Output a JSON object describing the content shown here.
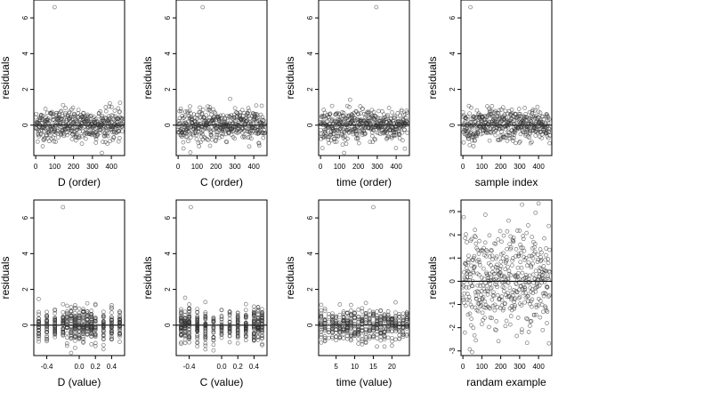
{
  "chart_data": [
    {
      "type": "scatter",
      "xlabel": "D (order)",
      "ylabel": "residuals",
      "x_ticks": [
        0,
        100,
        200,
        300,
        400
      ],
      "y_ticks": [
        0,
        2,
        4,
        6
      ],
      "xlim": [
        -10,
        470
      ],
      "ylim": [
        -1.7,
        7.0
      ],
      "hline": 0,
      "n_points": 460,
      "x_kind": "index",
      "y_kind": "residual",
      "outlier": {
        "x": 100,
        "y": 6.6
      }
    },
    {
      "type": "scatter",
      "xlabel": "C (order)",
      "ylabel": "residuals",
      "x_ticks": [
        0,
        100,
        200,
        300,
        400
      ],
      "y_ticks": [
        0,
        2,
        4,
        6
      ],
      "xlim": [
        -10,
        470
      ],
      "ylim": [
        -1.7,
        7.0
      ],
      "hline": 0,
      "n_points": 460,
      "x_kind": "index",
      "y_kind": "residual",
      "outlier": {
        "x": 130,
        "y": 6.6
      }
    },
    {
      "type": "scatter",
      "xlabel": "time (order)",
      "ylabel": "residuals",
      "x_ticks": [
        0,
        100,
        200,
        300,
        400
      ],
      "y_ticks": [
        0,
        2,
        4,
        6
      ],
      "xlim": [
        -10,
        470
      ],
      "ylim": [
        -1.7,
        7.0
      ],
      "hline": 0,
      "n_points": 460,
      "x_kind": "index",
      "y_kind": "residual",
      "outlier": {
        "x": 295,
        "y": 6.6
      }
    },
    {
      "type": "scatter",
      "xlabel": "sample index",
      "ylabel": "residuals",
      "x_ticks": [
        0,
        100,
        200,
        300,
        400
      ],
      "y_ticks": [
        0,
        2,
        4,
        6
      ],
      "xlim": [
        -10,
        470
      ],
      "ylim": [
        -1.7,
        7.0
      ],
      "hline": 0,
      "n_points": 460,
      "x_kind": "index",
      "y_kind": "residual",
      "outlier": {
        "x": 40,
        "y": 6.6
      }
    },
    {
      "type": "scatter",
      "xlabel": "D (value)",
      "ylabel": "residuals",
      "x_ticks": [
        -0.4,
        0.0,
        0.2,
        0.4
      ],
      "x_tick_labels": [
        "-0.4",
        "0.0",
        "0.2",
        "0.4"
      ],
      "y_ticks": [
        0,
        2,
        4,
        6
      ],
      "xlim": [
        -0.56,
        0.56
      ],
      "ylim": [
        -1.7,
        7.0
      ],
      "hline": 0,
      "n_points": 460,
      "x_kind": "discrete",
      "x_levels": [
        -0.5,
        -0.4,
        -0.3,
        -0.2,
        -0.15,
        -0.1,
        -0.05,
        0.0,
        0.05,
        0.1,
        0.15,
        0.2,
        0.3,
        0.4,
        0.5
      ],
      "y_kind": "residual",
      "outlier": {
        "x": -0.2,
        "y": 6.6
      }
    },
    {
      "type": "scatter",
      "xlabel": "C (value)",
      "ylabel": "residuals",
      "x_ticks": [
        -0.4,
        0.0,
        0.2,
        0.4
      ],
      "x_tick_labels": [
        "-0.4",
        "0.0",
        "0.2",
        "0.4"
      ],
      "y_ticks": [
        0,
        2,
        4,
        6
      ],
      "xlim": [
        -0.56,
        0.56
      ],
      "ylim": [
        -1.7,
        7.0
      ],
      "hline": 0,
      "n_points": 460,
      "x_kind": "discrete",
      "x_levels": [
        -0.5,
        -0.45,
        -0.4,
        -0.3,
        -0.2,
        -0.1,
        0.0,
        0.1,
        0.2,
        0.3,
        0.4,
        0.45,
        0.5
      ],
      "y_kind": "residual",
      "outlier": {
        "x": -0.38,
        "y": 6.6
      }
    },
    {
      "type": "scatter",
      "xlabel": "time (value)",
      "ylabel": "residuals",
      "x_ticks": [
        5,
        10,
        15,
        20
      ],
      "y_ticks": [
        0,
        2,
        4,
        6
      ],
      "xlim": [
        0.3,
        24.7
      ],
      "ylim": [
        -1.7,
        7.0
      ],
      "hline": 0,
      "n_points": 460,
      "x_kind": "discrete",
      "x_levels": [
        1,
        2,
        3,
        4,
        5,
        6,
        7,
        8,
        9,
        10,
        11,
        12,
        13,
        14,
        15,
        16,
        17,
        18,
        19,
        20,
        21,
        22,
        23,
        24
      ],
      "y_kind": "residual",
      "outlier": {
        "x": 15,
        "y": 6.6
      }
    },
    {
      "type": "scatter",
      "xlabel": "randam example",
      "ylabel": "residuals",
      "x_ticks": [
        0,
        100,
        200,
        300,
        400
      ],
      "y_ticks": [
        -3,
        -2,
        -1,
        0,
        1,
        2,
        3
      ],
      "xlim": [
        -10,
        470
      ],
      "ylim": [
        -3.2,
        3.5
      ],
      "hline": 0,
      "n_points": 460,
      "x_kind": "index",
      "y_kind": "normal",
      "outlier": {
        "x": 400,
        "y": 3.35
      }
    }
  ]
}
